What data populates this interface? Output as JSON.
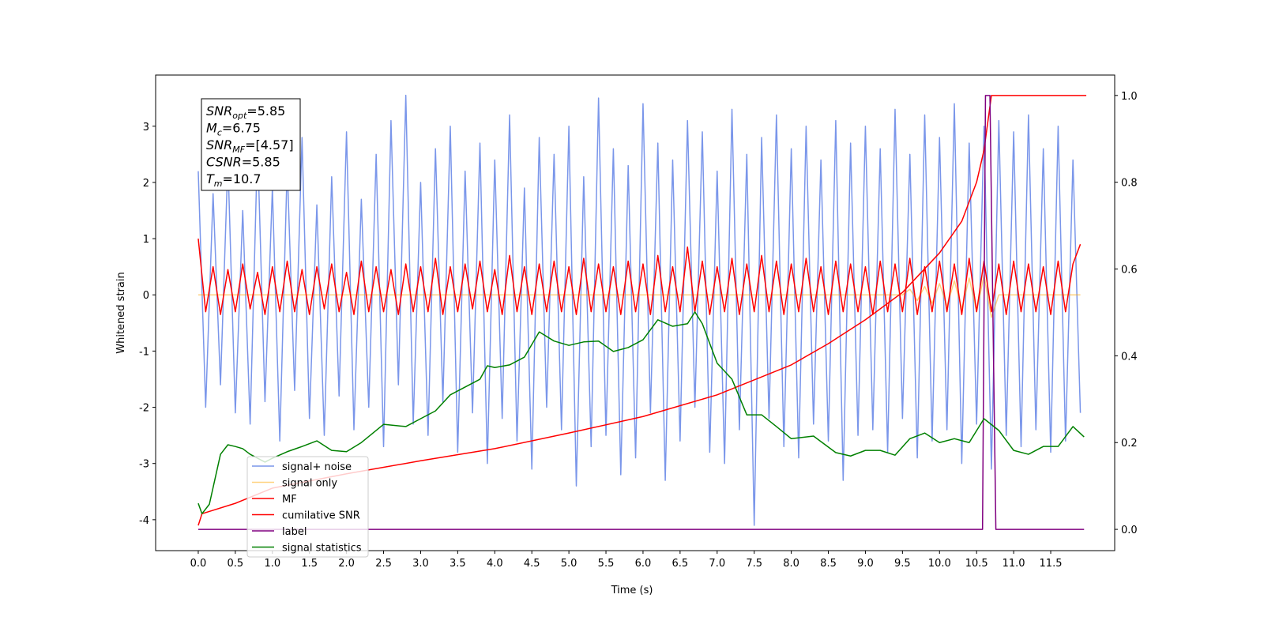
{
  "chart_data": {
    "type": "line",
    "xlabel": "Time (s)",
    "ylabel": "Whitened strain",
    "xlim": [
      -0.575,
      12.363
    ],
    "ylim": [
      -4.55,
      3.91
    ],
    "y2lim": [
      -0.049,
      1.047
    ],
    "xticks": [
      {
        "value": 0,
        "label": "0.0"
      },
      {
        "value": 0.5,
        "label": "0.5"
      },
      {
        "value": 1,
        "label": "1.0"
      },
      {
        "value": 1.5,
        "label": "1.5"
      },
      {
        "value": 2,
        "label": "2.0"
      },
      {
        "value": 2.5,
        "label": "2.5"
      },
      {
        "value": 3,
        "label": "3.0"
      },
      {
        "value": 3.5,
        "label": "3.5"
      },
      {
        "value": 4,
        "label": "4.0"
      },
      {
        "value": 4.5,
        "label": "4.5"
      },
      {
        "value": 5,
        "label": "5.0"
      },
      {
        "value": 5.5,
        "label": "5.5"
      },
      {
        "value": 6,
        "label": "6.0"
      },
      {
        "value": 6.5,
        "label": "6.5"
      },
      {
        "value": 7,
        "label": "7.0"
      },
      {
        "value": 7.5,
        "label": "7.5"
      },
      {
        "value": 8,
        "label": "8.0"
      },
      {
        "value": 8.5,
        "label": "8.5"
      },
      {
        "value": 9,
        "label": "9.0"
      },
      {
        "value": 9.5,
        "label": "9.5"
      },
      {
        "value": 10,
        "label": "10.0"
      },
      {
        "value": 10.5,
        "label": "10.5"
      },
      {
        "value": 11,
        "label": "11.0"
      },
      {
        "value": 11.5,
        "label": "11.5"
      }
    ],
    "yticks": [
      -4,
      -3,
      -2,
      -1,
      0,
      1,
      2,
      3
    ],
    "y2ticks": [
      {
        "value": 0,
        "label": "0.0"
      },
      {
        "value": 0.2,
        "label": "0.2"
      },
      {
        "value": 0.4,
        "label": "0.4"
      },
      {
        "value": 0.6,
        "label": "0.6"
      },
      {
        "value": 0.8,
        "label": "0.8"
      },
      {
        "value": 1,
        "label": "1.0"
      }
    ],
    "annotations": [
      {
        "symbol": "SNR",
        "sub": "opt",
        "text": "=5.85"
      },
      {
        "symbol": "M",
        "sub": "c",
        "text": "=6.75"
      },
      {
        "symbol": "SNR",
        "sub": "MF",
        "text": "=[4.57]"
      },
      {
        "symbol": "CSNR",
        "text": "=5.85"
      },
      {
        "symbol": "T",
        "sub": "m",
        "text": "=10.7"
      }
    ],
    "x": [
      0.0,
      0.1,
      0.2,
      0.3,
      0.4,
      0.5,
      0.6,
      0.7,
      0.8,
      0.9,
      1.0,
      1.1,
      1.2,
      1.3,
      1.4,
      1.5,
      1.6,
      1.7,
      1.8,
      1.9,
      2.0,
      2.1,
      2.2,
      2.3,
      2.4,
      2.5,
      2.6,
      2.7,
      2.8,
      2.9,
      3.0,
      3.1,
      3.2,
      3.3,
      3.4,
      3.5,
      3.6,
      3.7,
      3.8,
      3.9,
      4.0,
      4.1,
      4.2,
      4.3,
      4.4,
      4.5,
      4.6,
      4.7,
      4.8,
      4.9,
      5.0,
      5.1,
      5.2,
      5.3,
      5.4,
      5.5,
      5.6,
      5.7,
      5.8,
      5.9,
      6.0,
      6.1,
      6.2,
      6.3,
      6.4,
      6.5,
      6.6,
      6.7,
      6.8,
      6.9,
      7.0,
      7.1,
      7.2,
      7.3,
      7.4,
      7.5,
      7.6,
      7.7,
      7.8,
      7.9,
      8.0,
      8.1,
      8.2,
      8.3,
      8.4,
      8.5,
      8.6,
      8.7,
      8.8,
      8.9,
      9.0,
      9.1,
      9.2,
      9.3,
      9.4,
      9.5,
      9.6,
      9.7,
      9.8,
      9.9,
      10.0,
      10.1,
      10.2,
      10.3,
      10.4,
      10.5,
      10.6,
      10.7,
      10.8,
      10.9,
      11.0,
      11.1,
      11.2,
      11.3,
      11.4,
      11.5,
      11.6,
      11.7,
      11.8,
      11.9
    ],
    "series": [
      {
        "name": "signal+ noise",
        "color": "#4169e1",
        "opacity": 0.7,
        "values": [
          2.2,
          -2.0,
          1.8,
          -1.6,
          2.4,
          -2.1,
          1.5,
          -2.3,
          2.7,
          -1.9,
          1.9,
          -2.6,
          2.3,
          -1.7,
          2.8,
          -2.2,
          1.6,
          -2.5,
          2.1,
          -1.8,
          2.9,
          -2.4,
          1.7,
          -2.0,
          2.5,
          -2.7,
          3.1,
          -1.6,
          3.55,
          -2.3,
          2.0,
          -2.5,
          2.6,
          -1.9,
          3.0,
          -2.8,
          2.2,
          -2.1,
          2.7,
          -3.0,
          2.4,
          -2.2,
          3.2,
          -2.6,
          1.9,
          -3.1,
          2.8,
          -2.0,
          2.5,
          -2.4,
          3.0,
          -3.4,
          2.1,
          -2.7,
          3.5,
          -2.5,
          2.6,
          -3.2,
          2.3,
          -2.9,
          3.4,
          -2.1,
          2.7,
          -3.3,
          2.4,
          -2.6,
          3.1,
          -2.0,
          2.9,
          -2.8,
          2.2,
          -3.0,
          3.3,
          -2.4,
          2.5,
          -4.1,
          2.8,
          -2.2,
          3.2,
          -2.7,
          2.6,
          -2.9,
          3.0,
          -2.3,
          2.4,
          -2.6,
          3.1,
          -3.3,
          2.7,
          -2.5,
          3.0,
          -2.4,
          2.6,
          -2.8,
          3.3,
          -2.2,
          2.5,
          -2.9,
          3.2,
          -2.6,
          2.8,
          -2.4,
          3.4,
          -3.0,
          2.7,
          -2.3,
          3.0,
          -3.1,
          3.1,
          -2.5,
          2.9,
          -2.7,
          3.2,
          -2.4,
          2.6,
          -2.8,
          3.0,
          -2.6,
          2.4,
          -2.1
        ]
      },
      {
        "name": "signal only",
        "color": "#ffa500",
        "opacity": 0.5,
        "values": [
          0,
          0,
          0,
          0,
          0,
          0,
          0,
          0,
          0,
          0,
          0,
          0,
          0,
          0,
          0,
          0,
          0,
          0,
          0,
          0,
          0,
          0,
          0,
          0,
          0,
          0,
          0,
          0,
          0,
          0,
          0,
          0,
          0,
          0,
          0,
          0,
          0,
          0,
          0,
          0,
          0,
          0,
          0,
          0,
          0,
          0,
          0,
          0,
          0,
          0,
          0,
          0,
          0,
          0,
          0,
          0,
          0,
          0,
          0,
          0,
          0,
          0,
          0,
          0,
          0,
          0,
          0,
          0,
          0,
          0,
          0,
          0,
          0,
          0,
          0,
          0,
          0,
          0,
          0,
          0,
          0,
          0,
          0,
          0,
          0,
          0,
          0,
          0,
          0,
          0,
          0,
          0,
          0,
          0,
          0,
          0,
          0.1,
          -0.1,
          0.15,
          -0.15,
          0.2,
          -0.2,
          0.25,
          -0.25,
          0.3,
          -0.3,
          0.35,
          -0.4,
          0,
          0,
          0,
          0,
          0,
          0,
          0,
          0,
          0,
          0,
          0,
          0
        ]
      },
      {
        "name": "MF",
        "color": "#ff0000",
        "opacity": 1,
        "values": [
          1.0,
          -0.3,
          0.5,
          -0.35,
          0.45,
          -0.3,
          0.55,
          -0.25,
          0.4,
          -0.35,
          0.5,
          -0.3,
          0.6,
          -0.3,
          0.45,
          -0.35,
          0.5,
          -0.25,
          0.55,
          -0.3,
          0.4,
          -0.35,
          0.6,
          -0.3,
          0.5,
          -0.3,
          0.45,
          -0.35,
          0.55,
          -0.3,
          0.5,
          -0.3,
          0.65,
          -0.35,
          0.5,
          -0.3,
          0.55,
          -0.25,
          0.6,
          -0.3,
          0.45,
          -0.35,
          0.7,
          -0.3,
          0.5,
          -0.35,
          0.55,
          -0.3,
          0.6,
          -0.3,
          0.5,
          -0.35,
          0.65,
          -0.3,
          0.55,
          -0.3,
          0.5,
          -0.35,
          0.6,
          -0.3,
          0.55,
          -0.35,
          0.7,
          -0.3,
          0.5,
          -0.3,
          0.85,
          -0.3,
          0.6,
          -0.35,
          0.5,
          -0.3,
          0.65,
          -0.35,
          0.55,
          -0.3,
          0.7,
          -0.3,
          0.6,
          -0.35,
          0.55,
          -0.3,
          0.65,
          -0.3,
          0.5,
          -0.35,
          0.6,
          -0.3,
          0.55,
          -0.3,
          0.5,
          -0.35,
          0.6,
          -0.3,
          0.55,
          -0.3,
          0.65,
          -0.35,
          0.5,
          -0.3,
          0.6,
          -0.3,
          0.55,
          -0.35,
          0.65,
          -0.3,
          0.6,
          -0.3,
          0.55,
          -0.35,
          0.6,
          -0.3,
          0.55,
          -0.3,
          0.5,
          -0.35,
          0.6,
          -0.3,
          0.55,
          0.9
        ]
      },
      {
        "name": "cumilative SNR",
        "color": "#ff0000",
        "opacity": 1,
        "axis": "y2",
        "x": [
          0,
          0.05,
          0.5,
          1,
          2,
          3,
          4,
          5,
          6,
          7,
          8,
          8.5,
          9,
          9.5,
          10,
          10.3,
          10.5,
          10.6,
          10.7,
          11,
          11.5,
          11.98
        ],
        "values": [
          0.009,
          0.036,
          0.06,
          0.095,
          0.128,
          0.158,
          0.186,
          0.222,
          0.26,
          0.31,
          0.379,
          0.428,
          0.483,
          0.546,
          0.637,
          0.71,
          0.8,
          0.874,
          1.0,
          1.0,
          1.0,
          1.0
        ]
      },
      {
        "name": "label",
        "color": "#800080",
        "opacity": 1,
        "axis": "y2",
        "x": [
          0,
          10.58,
          10.62,
          10.68,
          10.76,
          11.95
        ],
        "values": [
          0,
          0,
          1,
          1,
          0,
          0
        ]
      },
      {
        "name": "signal statistics",
        "color": "#008000",
        "opacity": 1,
        "axis": "y2",
        "x": [
          0,
          0.05,
          0.15,
          0.3,
          0.4,
          0.5,
          0.6,
          0.7,
          0.9,
          1.0,
          1.2,
          1.4,
          1.6,
          1.8,
          2.0,
          2.2,
          2.5,
          2.8,
          3.0,
          3.2,
          3.4,
          3.6,
          3.8,
          3.9,
          4.0,
          4.2,
          4.4,
          4.6,
          4.8,
          5.0,
          5.2,
          5.4,
          5.6,
          5.8,
          6.0,
          6.2,
          6.4,
          6.6,
          6.7,
          6.8,
          7.0,
          7.2,
          7.4,
          7.6,
          7.8,
          8.0,
          8.3,
          8.6,
          8.8,
          9.0,
          9.2,
          9.4,
          9.6,
          9.8,
          10.0,
          10.2,
          10.4,
          10.6,
          10.8,
          11.0,
          11.2,
          11.4,
          11.6,
          11.8,
          11.95
        ],
        "values": [
          0.06,
          0.036,
          0.058,
          0.173,
          0.195,
          0.191,
          0.186,
          0.173,
          0.155,
          0.164,
          0.179,
          0.191,
          0.204,
          0.182,
          0.179,
          0.2,
          0.242,
          0.237,
          0.255,
          0.273,
          0.31,
          0.328,
          0.346,
          0.377,
          0.373,
          0.379,
          0.397,
          0.455,
          0.434,
          0.424,
          0.432,
          0.434,
          0.41,
          0.419,
          0.437,
          0.483,
          0.468,
          0.474,
          0.501,
          0.474,
          0.383,
          0.346,
          0.264,
          0.264,
          0.237,
          0.209,
          0.215,
          0.177,
          0.169,
          0.182,
          0.182,
          0.171,
          0.209,
          0.222,
          0.2,
          0.209,
          0.2,
          0.255,
          0.228,
          0.182,
          0.173,
          0.191,
          0.191,
          0.237,
          0.213
        ]
      }
    ]
  }
}
